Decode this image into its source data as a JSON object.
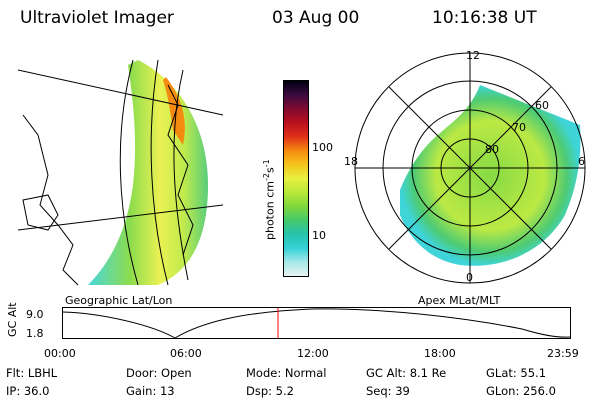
{
  "header": {
    "title": "Ultraviolet Imager",
    "date": "03 Aug 00",
    "time": "10:16:38 UT"
  },
  "left_panel": {
    "caption": "Geographic Lat/Lon"
  },
  "right_panel": {
    "caption": "Apex MLat/MLT",
    "mlt_labels": {
      "top": "12",
      "left": "18",
      "right": "6",
      "bottom": "0"
    },
    "lat_labels": [
      "60",
      "70",
      "80"
    ]
  },
  "colorbar": {
    "unit": "photon cm",
    "unit_sup1": "-2",
    "unit_mid": "s",
    "unit_sup2": "-1",
    "tick_100": "100",
    "tick_10": "10",
    "colors": [
      "#e8f4f4",
      "#a6e8e8",
      "#34d2d6",
      "#27c2ad",
      "#45c86b",
      "#7fd83a",
      "#b8e83a",
      "#e8f040",
      "#f5c41c",
      "#f58a10",
      "#e0301a",
      "#b8101c",
      "#800a30",
      "#3a0a40",
      "#000010"
    ]
  },
  "timeline": {
    "ylabel": "GC Alt",
    "y_top": "9.0",
    "y_bot": "1.8",
    "ticks": [
      "00:00",
      "06:00",
      "12:00",
      "18:00",
      "23:59"
    ],
    "current_time": "10:16"
  },
  "info": {
    "flt": "Flt: LBHL",
    "ip": "IP: 36.0",
    "door": "Door: Open",
    "gain": "Gain: 13",
    "mode": "Mode: Normal",
    "dsp": "Dsp:    5.2",
    "gcalt": "GC Alt: 8.1 Re",
    "seq": "Seq: 39",
    "glat": "GLat:  55.1",
    "glon": "GLon: 256.0"
  },
  "accent": {
    "cursor": "#ff0000"
  }
}
